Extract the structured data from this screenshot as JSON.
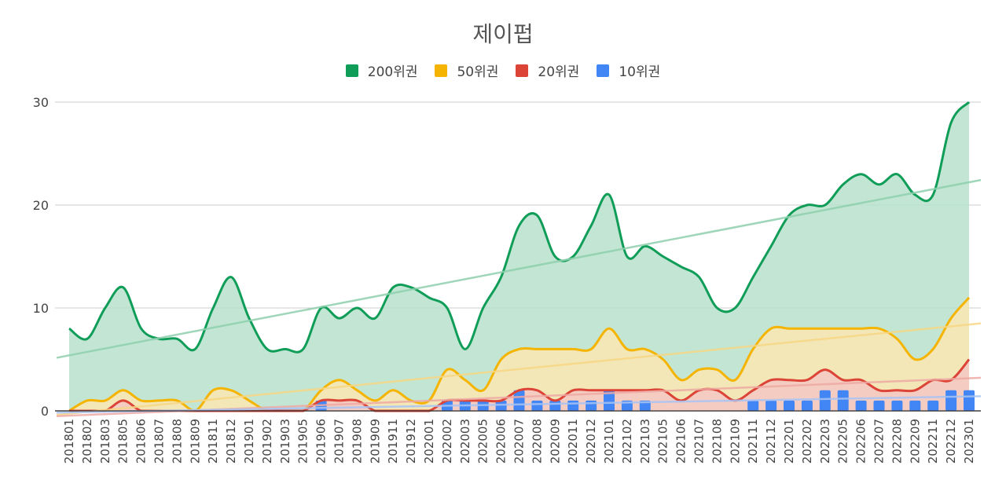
{
  "chart_data": {
    "type": "area",
    "title": "제이펍",
    "xlabel": "",
    "ylabel": "",
    "ylim": [
      0,
      30
    ],
    "yticks": [
      "0",
      "10",
      "20",
      "30"
    ],
    "legend_position": "top-center",
    "grid": true,
    "categories": [
      "201801",
      "201802",
      "201803",
      "201805",
      "201806",
      "201807",
      "201808",
      "201809",
      "201811",
      "201812",
      "201901",
      "201902",
      "201903",
      "201905",
      "201906",
      "201907",
      "201908",
      "201909",
      "201911",
      "201912",
      "202001",
      "202002",
      "202003",
      "202005",
      "202006",
      "202007",
      "202008",
      "202009",
      "202011",
      "202012",
      "202101",
      "202102",
      "202103",
      "202105",
      "202106",
      "202107",
      "202108",
      "202109",
      "202111",
      "202112",
      "202201",
      "202202",
      "202203",
      "202205",
      "202206",
      "202207",
      "202208",
      "202209",
      "202211",
      "202212",
      "202301"
    ],
    "series": [
      {
        "name": "200위권",
        "color": "#0f9d58",
        "fill": "#b7e1cd",
        "trend": "#8fd0ad",
        "kind": "area",
        "values": [
          8,
          7,
          10,
          12,
          8,
          7,
          7,
          6,
          10,
          13,
          9,
          6,
          6,
          6,
          10,
          9,
          10,
          9,
          12,
          12,
          11,
          10,
          6,
          10,
          13,
          18,
          19,
          15,
          15,
          18,
          21,
          15,
          16,
          15,
          14,
          13,
          10,
          10,
          13,
          16,
          19,
          20,
          20,
          22,
          23,
          22,
          23,
          21,
          21,
          28,
          30
        ]
      },
      {
        "name": "50위권",
        "color": "#f4b400",
        "fill": "#fce8b2",
        "trend": "#f7d785",
        "kind": "area",
        "values": [
          0,
          1,
          1,
          2,
          1,
          1,
          1,
          0,
          2,
          2,
          1,
          0,
          0,
          0,
          2,
          3,
          2,
          1,
          2,
          1,
          1,
          4,
          3,
          2,
          5,
          6,
          6,
          6,
          6,
          6,
          8,
          6,
          6,
          5,
          3,
          4,
          4,
          3,
          6,
          8,
          8,
          8,
          8,
          8,
          8,
          8,
          7,
          5,
          6,
          9,
          11
        ]
      },
      {
        "name": "20위권",
        "color": "#db4437",
        "fill": "#f4c7c3",
        "trend": "#eeaaa4",
        "kind": "area",
        "values": [
          0,
          0,
          0,
          1,
          0,
          0,
          0,
          0,
          0,
          0,
          0,
          0,
          0,
          0,
          1,
          1,
          1,
          0,
          0,
          0,
          0,
          1,
          1,
          1,
          1,
          2,
          2,
          1,
          2,
          2,
          2,
          2,
          2,
          2,
          1,
          2,
          2,
          1,
          2,
          3,
          3,
          3,
          4,
          3,
          3,
          2,
          2,
          2,
          3,
          3,
          5
        ]
      },
      {
        "name": "10위권",
        "color": "#4285f4",
        "fill": "#4285f4",
        "trend": "#a8c4f5",
        "kind": "bar",
        "values": [
          0,
          0,
          0,
          0,
          0,
          0,
          0,
          0,
          0,
          0,
          0,
          0,
          0,
          0,
          1,
          0,
          0,
          0,
          0,
          0,
          0,
          1,
          1,
          1,
          1,
          2,
          1,
          1,
          1,
          1,
          2,
          1,
          1,
          0,
          0,
          0,
          0,
          0,
          1,
          1,
          1,
          1,
          2,
          2,
          1,
          1,
          1,
          1,
          1,
          2,
          2
        ]
      }
    ]
  }
}
